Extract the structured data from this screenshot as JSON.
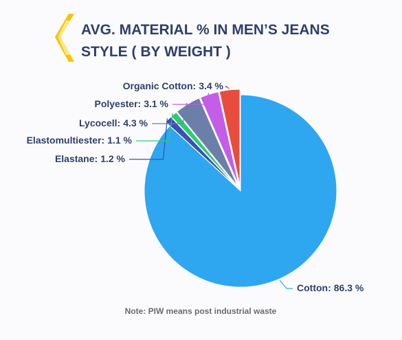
{
  "chart_data": {
    "type": "pie",
    "title": [
      "AVG. MATERIAL % IN MEN’S JEANS",
      "STYLE ( BY WEIGHT )"
    ],
    "note": "Note: PIW means post industrial waste",
    "categories": [
      "Cotton:",
      "Elastane:",
      "Elastomultiester:",
      "Lycocell:",
      "Polyester:",
      "Organic Cotton:"
    ],
    "values": [
      86.3,
      1.2,
      1.1,
      4.3,
      3.1,
      3.4
    ],
    "value_labels": [
      "86.3 %",
      "1.2 %",
      "1.1 %",
      "4.3 %",
      "3.1 %",
      "3.4 %"
    ],
    "colors": [
      "#2ea6f0",
      "#3b4fb5",
      "#2ecc71",
      "#6b7fa8",
      "#c45de8",
      "#e84c3d"
    ]
  }
}
